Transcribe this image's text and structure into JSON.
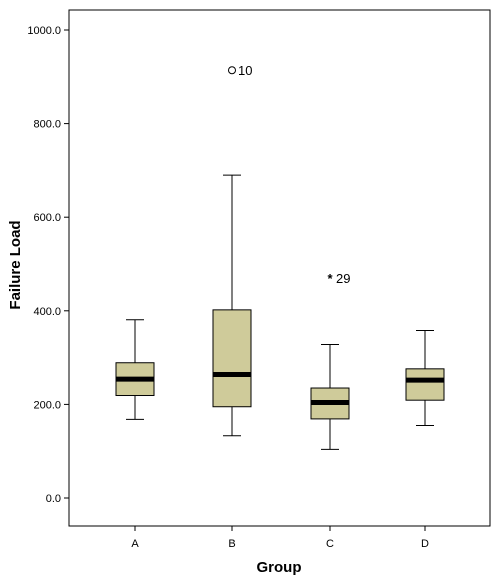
{
  "chart_data": {
    "type": "boxplot",
    "xlabel": "Group",
    "ylabel": "Failure Load",
    "ylim": [
      -60,
      1060
    ],
    "yticks": [
      0,
      200,
      400,
      600,
      800,
      1000
    ],
    "ytick_labels": [
      "0.0",
      "200.0",
      "400.0",
      "600.0",
      "800.0",
      "1000.0"
    ],
    "categories": [
      "A",
      "B",
      "C",
      "D"
    ],
    "box_fill": "#cfcb9a",
    "groups": [
      {
        "name": "A",
        "min": 168,
        "q1": 219,
        "median": 254,
        "q3": 289,
        "max": 381,
        "outliers": []
      },
      {
        "name": "B",
        "min": 133,
        "q1": 195,
        "median": 264,
        "q3": 402,
        "max": 690,
        "outliers": [
          {
            "value": 914,
            "label": "10",
            "marker": "circle"
          }
        ]
      },
      {
        "name": "C",
        "min": 104,
        "q1": 169,
        "median": 204,
        "q3": 235,
        "max": 328,
        "outliers": [
          {
            "value": 470,
            "label": "29",
            "marker": "star"
          }
        ]
      },
      {
        "name": "D",
        "min": 155,
        "q1": 209,
        "median": 252,
        "q3": 276,
        "max": 358,
        "outliers": []
      }
    ],
    "grid": false,
    "legend": "none"
  }
}
